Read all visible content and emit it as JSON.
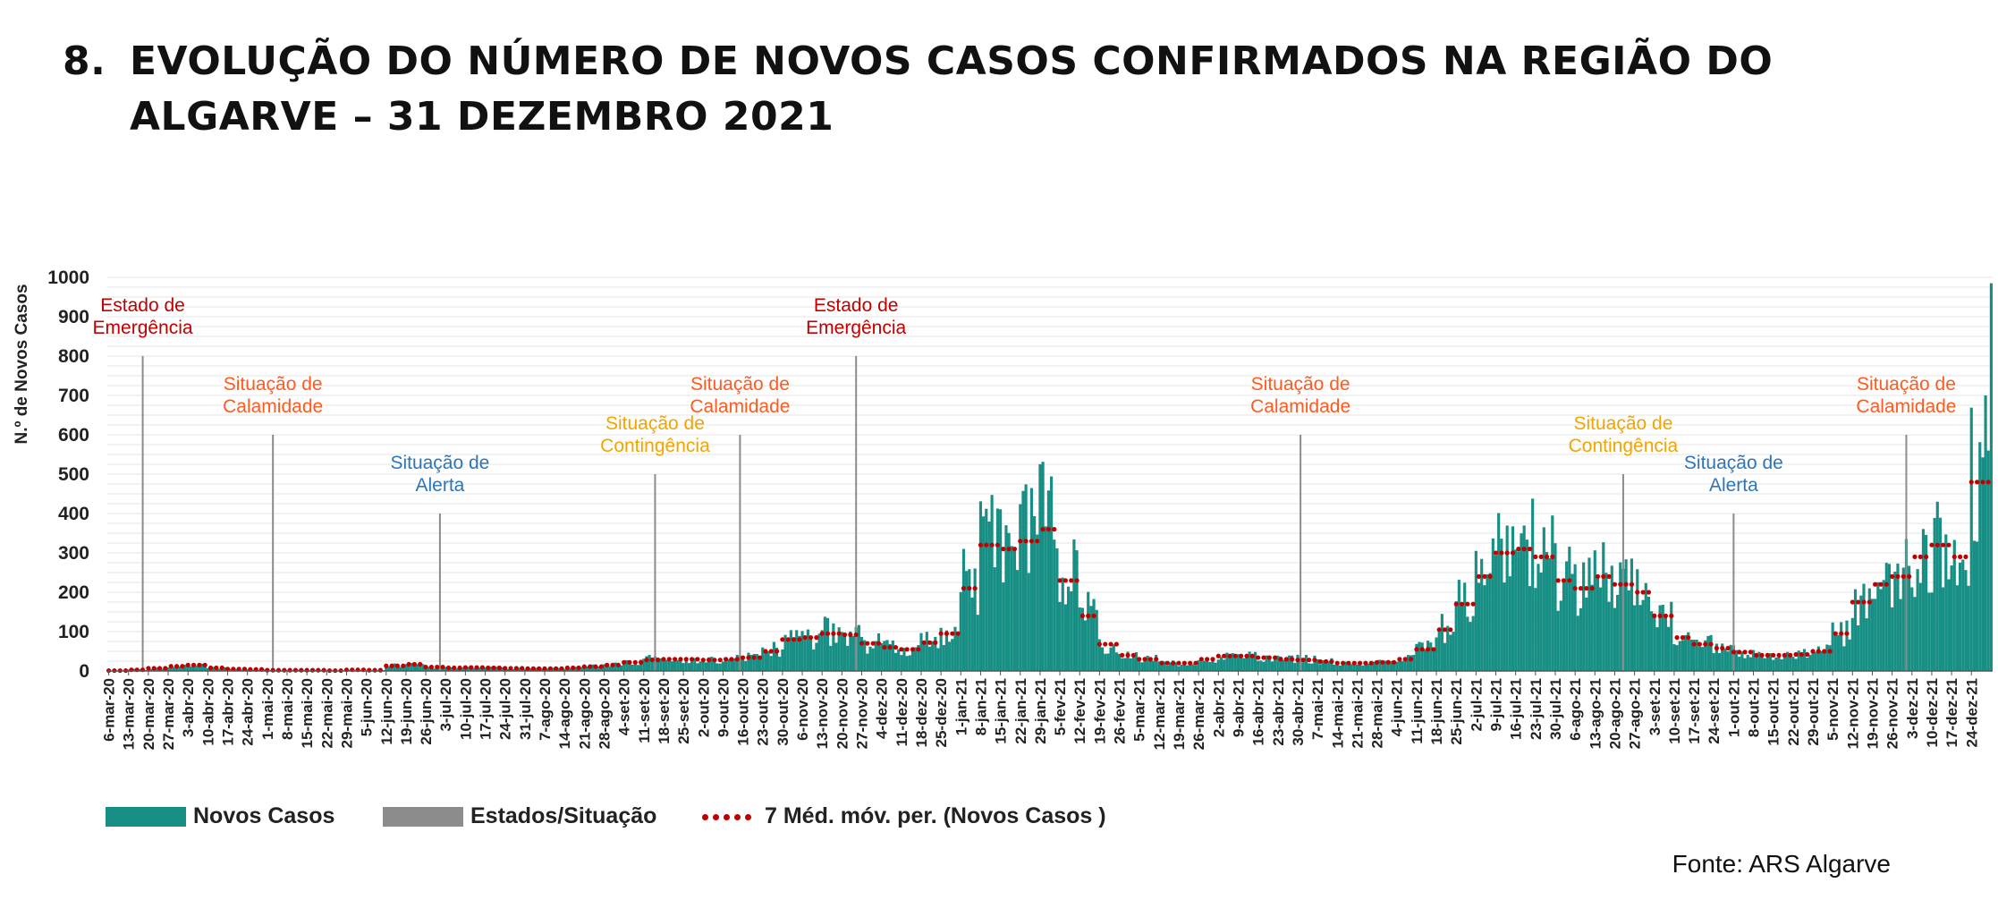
{
  "header": {
    "number": "8.",
    "title_line1": "EVOLUÇÃO DO NÚMERO DE NOVOS CASOS CONFIRMADOS NA REGIÃO DO",
    "title_line2": "ALGARVE – 31 DEZEMBRO 2021"
  },
  "source": "Fonte: ARS Algarve",
  "legend": {
    "new_cases": "Novos Casos",
    "states": "Estados/Situação",
    "moving_avg": "7 Méd. móv. per. (Novos Casos )"
  },
  "colors": {
    "bars": "#188f84",
    "state_lines": "#8c8c8c",
    "moving_avg": "#c00000",
    "label_red": "#c00000",
    "label_orange": "#ff5a1f",
    "label_yellow": "#f0a500",
    "label_blue": "#2e75b6",
    "grid": "#e6e6e6"
  },
  "chart_data": {
    "type": "bar",
    "title": "",
    "ylabel": "N.º de Novos Casos",
    "xlabel": "",
    "ylim": [
      0,
      1000
    ],
    "yticks": [
      0,
      100,
      200,
      300,
      400,
      500,
      600,
      700,
      800,
      900,
      1000
    ],
    "grid": true,
    "legend_position": "bottom",
    "x_start_date": "2020-03-06",
    "x_end_date": "2021-12-31",
    "x_tick_labels": [
      "6-mar-20",
      "13-mar-20",
      "20-mar-20",
      "27-mar-20",
      "3-abr-20",
      "10-abr-20",
      "17-abr-20",
      "24-abr-20",
      "1-mai-20",
      "8-mai-20",
      "15-mai-20",
      "22-mai-20",
      "29-mai-20",
      "5-jun-20",
      "12-jun-20",
      "19-jun-20",
      "26-jun-20",
      "3-jul-20",
      "10-jul-20",
      "17-jul-20",
      "24-jul-20",
      "31-jul-20",
      "7-ago-20",
      "14-ago-20",
      "21-ago-20",
      "28-ago-20",
      "4-set-20",
      "11-set-20",
      "18-set-20",
      "25-set-20",
      "2-out-20",
      "9-out-20",
      "16-out-20",
      "23-out-20",
      "30-out-20",
      "6-nov-20",
      "13-nov-20",
      "20-nov-20",
      "27-nov-20",
      "4-dez-20",
      "11-dez-20",
      "18-dez-20",
      "25-dez-20",
      "1-jan-21",
      "8-jan-21",
      "15-jan-21",
      "22-jan-21",
      "29-jan-21",
      "5-fev-21",
      "12-fev-21",
      "19-fev-21",
      "26-fev-21",
      "5-mar-21",
      "12-mar-21",
      "19-mar-21",
      "26-mar-21",
      "2-abr-21",
      "9-abr-21",
      "16-abr-21",
      "23-abr-21",
      "30-abr-21",
      "7-mai-21",
      "14-mai-21",
      "21-mai-21",
      "28-mai-21",
      "4-jun-21",
      "11-jun-21",
      "18-jun-21",
      "25-jun-21",
      "2-jul-21",
      "9-jul-21",
      "16-jul-21",
      "23-jul-21",
      "30-jul-21",
      "6-ago-21",
      "13-ago-21",
      "20-ago-21",
      "27-ago-21",
      "3-set-21",
      "10-set-21",
      "17-set-21",
      "24-set-21",
      "1-out-21",
      "8-out-21",
      "15-out-21",
      "22-out-21",
      "29-out-21",
      "5-nov-21",
      "12-nov-21",
      "19-nov-21",
      "26-nov-21",
      "3-dez-21",
      "10-dez-21",
      "17-dez-21",
      "24-dez-21"
    ],
    "series": [
      {
        "name": "Novos Casos",
        "type": "bar",
        "weekly_values": [
          1,
          4,
          8,
          13,
          16,
          8,
          5,
          4,
          2,
          2,
          2,
          1,
          3,
          2,
          14,
          18,
          10,
          8,
          10,
          8,
          7,
          6,
          6,
          8,
          12,
          16,
          24,
          30,
          32,
          30,
          28,
          30,
          35,
          55,
          85,
          88,
          100,
          95,
          70,
          60,
          55,
          75,
          100,
          230,
          370,
          330,
          380,
          420,
          250,
          150,
          70,
          40,
          30,
          20,
          20,
          30,
          40,
          40,
          35,
          30,
          30,
          25,
          20,
          20,
          22,
          30,
          60,
          110,
          175,
          250,
          320,
          330,
          320,
          240,
          220,
          240,
          230,
          210,
          150,
          90,
          70,
          60,
          50,
          40,
          40,
          42,
          50,
          100,
          180,
          230,
          250,
          290,
          320,
          300,
          520
        ]
      },
      {
        "name": "7 Méd. móv. per. (Novos Casos )",
        "type": "line",
        "weekly_values": [
          1,
          3,
          7,
          12,
          15,
          8,
          5,
          4,
          2,
          2,
          2,
          1,
          3,
          2,
          13,
          17,
          10,
          8,
          9,
          8,
          7,
          6,
          6,
          8,
          11,
          15,
          22,
          28,
          30,
          30,
          28,
          30,
          34,
          50,
          80,
          85,
          95,
          92,
          70,
          60,
          55,
          72,
          95,
          210,
          320,
          310,
          330,
          360,
          230,
          140,
          68,
          40,
          30,
          20,
          20,
          30,
          38,
          38,
          34,
          30,
          28,
          24,
          20,
          20,
          22,
          30,
          55,
          105,
          170,
          240,
          300,
          310,
          290,
          230,
          210,
          240,
          220,
          200,
          140,
          85,
          68,
          58,
          48,
          40,
          40,
          42,
          50,
          95,
          175,
          220,
          240,
          290,
          320,
          290,
          480
        ]
      }
    ],
    "state_markers": [
      {
        "date": "2020-03-18",
        "label": [
          "Estado de",
          "Emergência"
        ],
        "height": 800,
        "color": "red"
      },
      {
        "date": "2020-05-03",
        "label": [
          "Situação de",
          "Calamidade"
        ],
        "height": 600,
        "color": "orange"
      },
      {
        "date": "2020-07-01",
        "label": [
          "Situação de",
          "Alerta"
        ],
        "height": 400,
        "color": "blue"
      },
      {
        "date": "2020-09-15",
        "label": [
          "Situação de",
          "Contingência"
        ],
        "height": 500,
        "color": "yellow"
      },
      {
        "date": "2020-10-15",
        "label": [
          "Situação de",
          "Calamidade"
        ],
        "height": 600,
        "color": "orange"
      },
      {
        "date": "2020-11-25",
        "label": [
          "Estado de",
          "Emergência"
        ],
        "height": 800,
        "color": "red"
      },
      {
        "date": "2021-05-01",
        "label": [
          "Situação de",
          "Calamidade"
        ],
        "height": 600,
        "color": "orange"
      },
      {
        "date": "2021-08-23",
        "label": [
          "Situação de",
          "Contingência"
        ],
        "height": 500,
        "color": "yellow"
      },
      {
        "date": "2021-10-01",
        "label": [
          "Situação de",
          "Alerta"
        ],
        "height": 400,
        "color": "blue"
      },
      {
        "date": "2021-12-01",
        "label": [
          "Situação de",
          "Calamidade"
        ],
        "height": 600,
        "color": "orange"
      }
    ],
    "last_values": {
      "2021-12-29": 700,
      "2021-12-30": 560,
      "2021-12-31": 985
    }
  }
}
